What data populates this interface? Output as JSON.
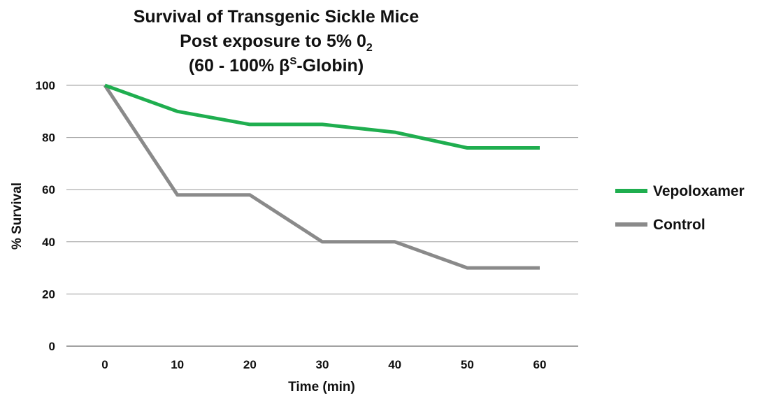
{
  "chart_data": {
    "type": "line",
    "title_lines": [
      "Survival of Transgenic Sickle Mice",
      "Post exposure to  5% 0",
      "(60 - 100% β"
    ],
    "title_sub": "2",
    "title_sup": "S",
    "title_tail": "-Globin)",
    "xlabel": "Time (min)",
    "ylabel": "% Survival",
    "x": [
      0,
      10,
      20,
      30,
      40,
      50,
      60
    ],
    "x_tick_labels": [
      "0",
      "10",
      "20",
      "30",
      "40",
      "50",
      "60"
    ],
    "y_tick_labels": [
      "0",
      "20",
      "40",
      "60",
      "80",
      "100"
    ],
    "ylim": [
      0,
      100
    ],
    "grid": true,
    "legend_position": "right",
    "series": [
      {
        "name": "Vepoloxamer",
        "color": "#1fae4f",
        "values": [
          100,
          90,
          85,
          85,
          82,
          76,
          76
        ]
      },
      {
        "name": "Control",
        "color": "#8a8a8a",
        "values": [
          100,
          58,
          58,
          40,
          40,
          30,
          30
        ]
      }
    ]
  }
}
